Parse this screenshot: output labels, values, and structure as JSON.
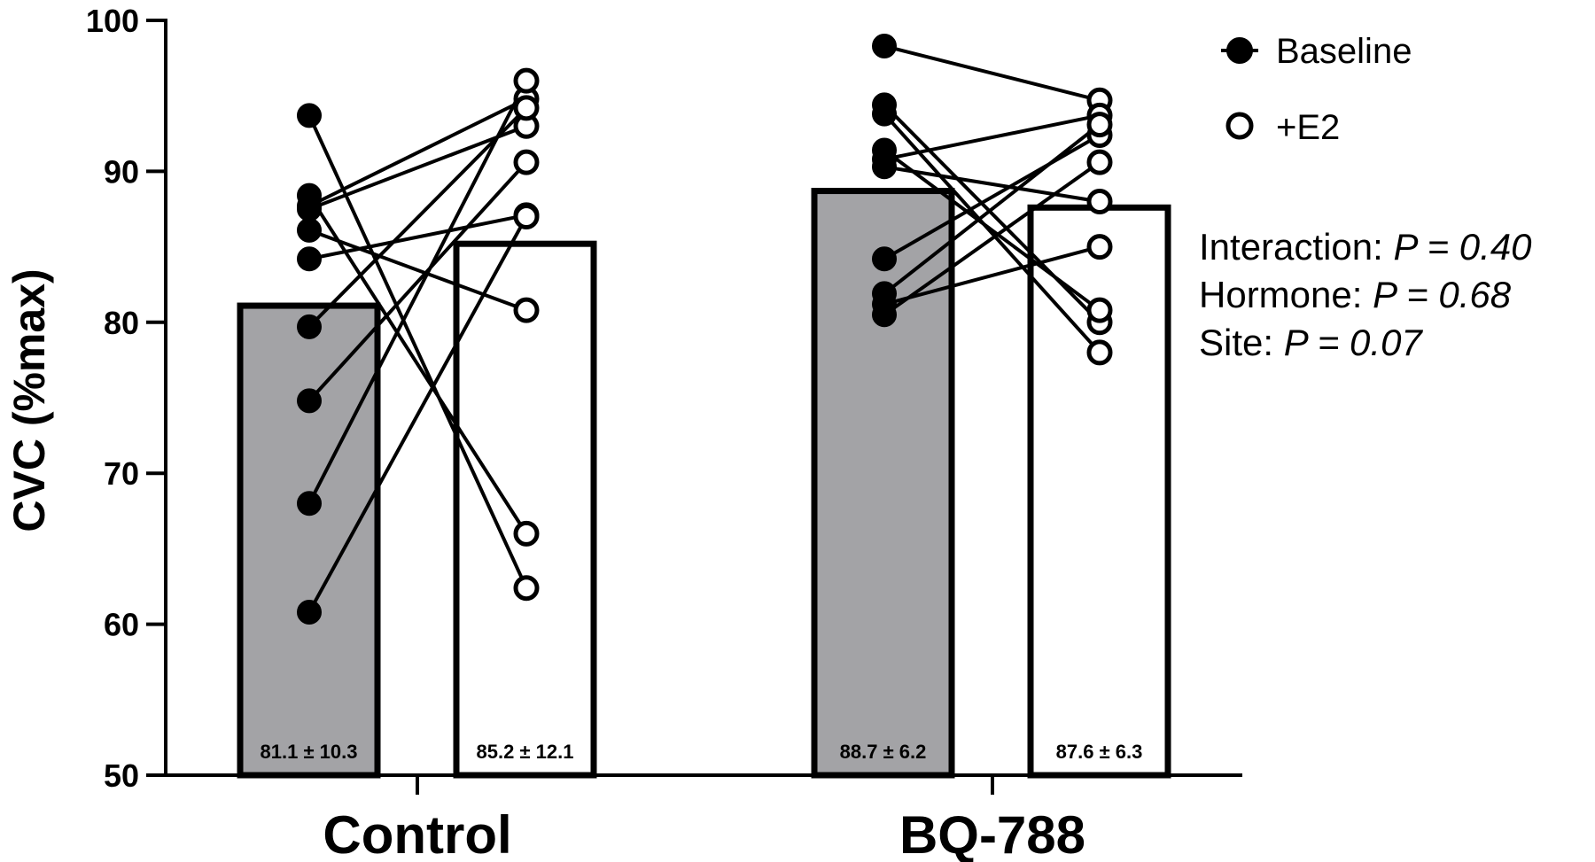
{
  "chart_data": {
    "type": "bar",
    "title": "",
    "xlabel": "",
    "ylabel": "CVC (%max)",
    "ylim": [
      50,
      100
    ],
    "yticks": [
      50,
      60,
      70,
      80,
      90,
      100
    ],
    "categories": [
      "Control",
      "BQ-788"
    ],
    "series": [
      {
        "name": "Baseline",
        "fill": "#a3a3a6",
        "marker": "filled",
        "values": [
          81.1,
          88.7
        ],
        "labels": [
          "81.1 ± 10.3",
          "88.7 ± 6.2"
        ]
      },
      {
        "name": "+E2",
        "fill": "#ffffff",
        "marker": "open",
        "values": [
          85.2,
          87.6
        ],
        "labels": [
          "85.2 ± 12.1",
          "87.6 ± 6.3"
        ]
      }
    ],
    "paired_points": [
      {
        "category": "Control",
        "pairs": [
          [
            93.7,
            62.4
          ],
          [
            88.4,
            66.0
          ],
          [
            87.7,
            94.8
          ],
          [
            87.5,
            93.0
          ],
          [
            86.1,
            80.8
          ],
          [
            84.2,
            87.1
          ],
          [
            79.7,
            94.2
          ],
          [
            74.8,
            90.6
          ],
          [
            68.0,
            96.0
          ],
          [
            60.8,
            87.0
          ]
        ]
      },
      {
        "category": "BQ-788",
        "pairs": [
          [
            98.3,
            94.7
          ],
          [
            94.4,
            80.0
          ],
          [
            93.8,
            78.0
          ],
          [
            91.4,
            80.8
          ],
          [
            90.8,
            93.7
          ],
          [
            90.3,
            88.0
          ],
          [
            84.2,
            92.4
          ],
          [
            81.9,
            93.1
          ],
          [
            81.2,
            85.0
          ],
          [
            80.5,
            90.6
          ]
        ]
      }
    ],
    "legend": {
      "placement": "top-right",
      "entries": [
        {
          "label": "Baseline",
          "marker": "filled"
        },
        {
          "label": "+E2",
          "marker": "open"
        }
      ]
    },
    "annotations": [
      {
        "label": "Interaction: ",
        "p": "P = 0.40"
      },
      {
        "label": "Hormone: ",
        "p": "P = 0.68"
      },
      {
        "label": "Site: ",
        "p": "P = 0.07"
      }
    ],
    "colors": {
      "baseline_bar": "#a3a3a6",
      "e2_bar": "#ffffff",
      "stroke": "#000000"
    }
  }
}
